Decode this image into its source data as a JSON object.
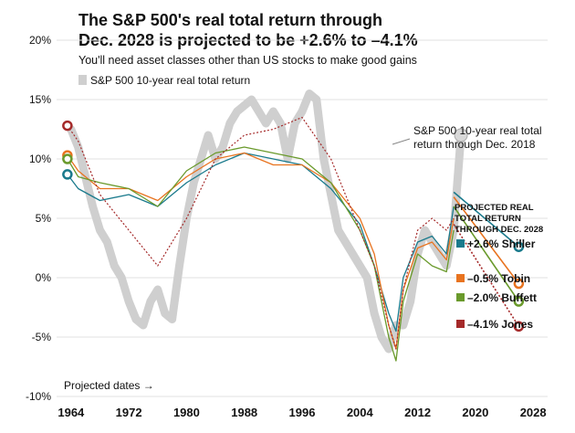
{
  "title_line1": "The S&P 500's real total return through",
  "title_line2": "Dec. 2028 is projected to be +2.6% to –4.1%",
  "subtitle": "You'll need asset classes other than US stocks to make good gains",
  "legend_label": "S&P 500 10-year real total return",
  "annotation_line1": "S&P 500 10-year real total",
  "annotation_line2": "return through Dec. 2018",
  "projected_dates_label": "Projected dates →",
  "projection_header": [
    "PROJECTED REAL",
    "TOTAL RETURN",
    "THROUGH DEC. 2028"
  ],
  "colors": {
    "actual": "#cfcfcf",
    "shiller": "#1a7a8c",
    "tobin": "#e8731f",
    "buffett": "#6a9a2c",
    "jones": "#a52a2a"
  },
  "chart_data": {
    "type": "line",
    "title": "The S&P 500's real total return through Dec. 2028 is projected to be +2.6% to –4.1%",
    "xlabel": "",
    "ylabel": "",
    "xlim": [
      1962,
      2030
    ],
    "ylim": [
      -10,
      20
    ],
    "y_ticks": [
      20,
      15,
      10,
      5,
      0,
      -5,
      -10
    ],
    "y_tick_labels": [
      "20%",
      "15%",
      "10%",
      "5%",
      "0%",
      "-5%",
      "-10%"
    ],
    "x_ticks": [
      1964,
      1972,
      1980,
      1988,
      1996,
      2004,
      2012,
      2020,
      2028
    ],
    "grid": "horizontal",
    "legend_position": "top-left",
    "series": [
      {
        "name": "S&P 500 10-year real total return",
        "x": [
          1964,
          1965,
          1966,
          1967,
          1968,
          1969,
          1970,
          1971,
          1972,
          1973,
          1974,
          1975,
          1976,
          1977,
          1978,
          1979,
          1980,
          1981,
          1982,
          1983,
          1984,
          1985,
          1986,
          1987,
          1988,
          1989,
          1990,
          1991,
          1992,
          1993,
          1994,
          1995,
          1996,
          1997,
          1998,
          1999,
          2000,
          2001,
          2002,
          2003,
          2004,
          2005,
          2006,
          2007,
          2008,
          2009,
          2010,
          2011,
          2012,
          2013,
          2014,
          2015,
          2016,
          2017,
          2018
        ],
        "y": [
          12.5,
          11,
          8.5,
          6,
          4,
          3,
          1,
          0,
          -2,
          -3.5,
          -4,
          -2,
          -1,
          -3,
          -3.5,
          1,
          5,
          8,
          10,
          12,
          10,
          11,
          13,
          14,
          14.5,
          15,
          14,
          13,
          14,
          13,
          10,
          13,
          14,
          15.5,
          15,
          10,
          7,
          4,
          3,
          2,
          1,
          0,
          -3,
          -5,
          -6,
          -4,
          -4,
          -2,
          2,
          4,
          3,
          2,
          1,
          4,
          12
        ]
      },
      {
        "name": "+2.6% Shiller",
        "x": [
          1963.5,
          1965,
          1968,
          1972,
          1976,
          1980,
          1984,
          1988,
          1992,
          1996,
          2000,
          2004,
          2006,
          2008,
          2009,
          2010,
          2012,
          2014,
          2016,
          2017
        ],
        "y": [
          8.7,
          7.5,
          6.5,
          7,
          6,
          8,
          9.5,
          10.5,
          10,
          9.5,
          7.5,
          4.5,
          1,
          -3,
          -4.5,
          0,
          3,
          3.5,
          2,
          6
        ],
        "projection": {
          "x": [
            2017,
            2026
          ],
          "y": [
            7.2,
            2.6
          ]
        }
      },
      {
        "name": "–0.5% Tobin",
        "x": [
          1963.5,
          1965,
          1968,
          1972,
          1976,
          1980,
          1984,
          1988,
          1992,
          1996,
          2000,
          2004,
          2006,
          2008,
          2009,
          2010,
          2012,
          2014,
          2016,
          2017
        ],
        "y": [
          10.3,
          9,
          7.5,
          7.5,
          6.5,
          8.5,
          10,
          10.5,
          9.5,
          9.5,
          8,
          5,
          2,
          -4,
          -6,
          -1,
          2.5,
          3,
          1.5,
          5
        ],
        "projection": {
          "x": [
            2017,
            2026
          ],
          "y": [
            6.8,
            -0.5
          ]
        }
      },
      {
        "name": "–2.0% Buffett",
        "x": [
          1963.5,
          1965,
          1968,
          1972,
          1976,
          1980,
          1984,
          1988,
          1992,
          1996,
          2000,
          2004,
          2006,
          2008,
          2009,
          2010,
          2012,
          2014,
          2016,
          2017
        ],
        "y": [
          10,
          8.5,
          8,
          7.5,
          6,
          9,
          10.5,
          11,
          10.5,
          10,
          8,
          4,
          1,
          -5,
          -7,
          -2,
          2,
          1,
          0.5,
          4
        ],
        "projection": {
          "x": [
            2017,
            2026
          ],
          "y": [
            6,
            -2
          ]
        }
      },
      {
        "name": "–4.1% Jones",
        "x": [
          1963.5,
          1965,
          1968,
          1972,
          1976,
          1980,
          1984,
          1988,
          1992,
          1996,
          2000,
          2004,
          2006,
          2008,
          2009,
          2010,
          2012,
          2014,
          2016,
          2017
        ],
        "y": [
          12.8,
          11.5,
          7,
          4,
          1,
          5,
          10,
          12,
          12.5,
          13.5,
          10,
          4,
          1,
          -4,
          -6,
          -1,
          4,
          5,
          4,
          5
        ],
        "projection": {
          "x": [
            2017,
            2026
          ],
          "y": [
            4.5,
            -4.1
          ]
        }
      }
    ]
  }
}
